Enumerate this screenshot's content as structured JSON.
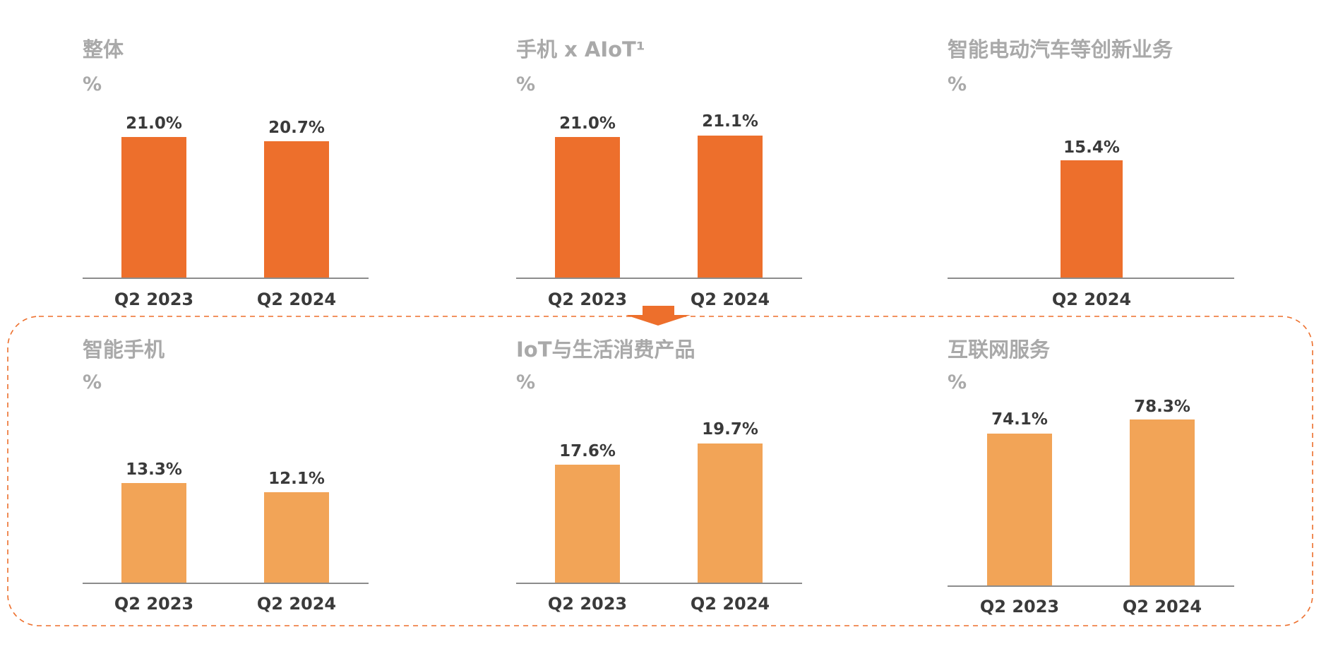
{
  "colors": {
    "dark_orange": "#ED6F2C",
    "light_orange": "#F2A457",
    "axis": "#8c8c8c",
    "dashed_border": "#ED6F2C"
  },
  "chart_data": [
    {
      "type": "bar",
      "title": "整体",
      "unit": "%",
      "categories": [
        "Q2 2023",
        "Q2 2024"
      ],
      "values": [
        21.0,
        20.7
      ],
      "value_labels": [
        "21.0%",
        "20.7%"
      ],
      "color": "dark_orange"
    },
    {
      "type": "bar",
      "title": "手机 x AIoT¹",
      "unit": "%",
      "categories": [
        "Q2 2023",
        "Q2 2024"
      ],
      "values": [
        21.0,
        21.1
      ],
      "value_labels": [
        "21.0%",
        "21.1%"
      ],
      "color": "dark_orange"
    },
    {
      "type": "bar",
      "title": "智能电动汽车等创新业务",
      "unit": "%",
      "categories": [
        "Q2 2024"
      ],
      "values": [
        15.4
      ],
      "value_labels": [
        "15.4%"
      ],
      "color": "dark_orange"
    },
    {
      "type": "bar",
      "title": "智能手机",
      "unit": "%",
      "categories": [
        "Q2 2023",
        "Q2 2024"
      ],
      "values": [
        13.3,
        12.1
      ],
      "value_labels": [
        "13.3%",
        "12.1%"
      ],
      "color": "light_orange"
    },
    {
      "type": "bar",
      "title": "IoT与生活消费产品",
      "unit": "%",
      "categories": [
        "Q2 2023",
        "Q2 2024"
      ],
      "values": [
        17.6,
        19.7
      ],
      "value_labels": [
        "17.6%",
        "19.7%"
      ],
      "color": "light_orange"
    },
    {
      "type": "bar",
      "title": "互联网服务",
      "unit": "%",
      "categories": [
        "Q2 2023",
        "Q2 2024"
      ],
      "values": [
        74.1,
        78.3
      ],
      "value_labels": [
        "74.1%",
        "78.3%"
      ],
      "color": "light_orange"
    }
  ]
}
